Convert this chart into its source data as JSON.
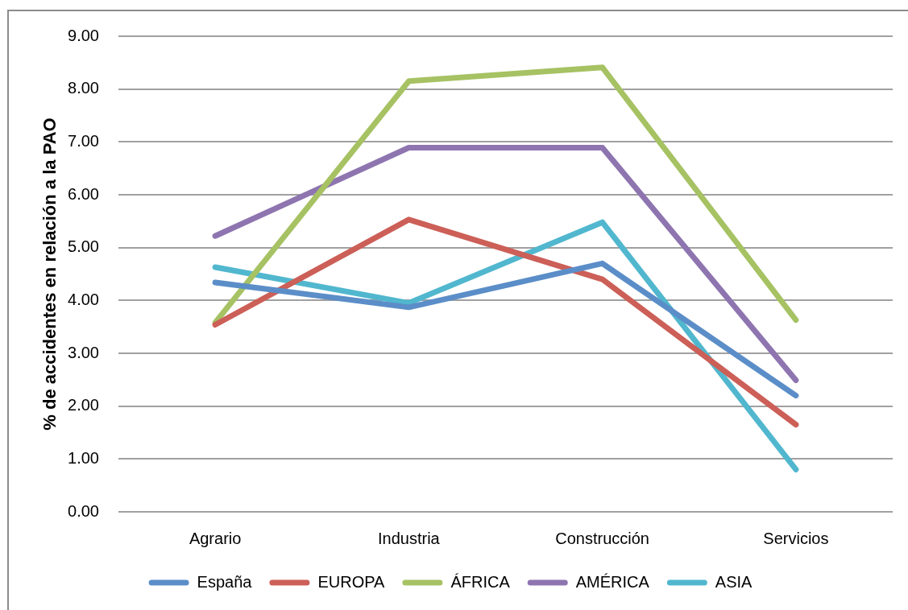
{
  "chart_data": {
    "type": "line",
    "ylabel": "% de accidentes en relación a la PAO",
    "categories": [
      "Agrario",
      "Industria",
      "Construcción",
      "Servicios"
    ],
    "series": [
      {
        "name": "España",
        "color": "#5b8ec8",
        "values": [
          4.34,
          3.87,
          4.7,
          2.2
        ]
      },
      {
        "name": "EUROPA",
        "color": "#cc5f57",
        "values": [
          3.54,
          5.53,
          4.4,
          1.65
        ]
      },
      {
        "name": "ÁFRICA",
        "color": "#a6c263",
        "values": [
          3.58,
          8.15,
          8.41,
          3.63
        ]
      },
      {
        "name": "AMÉRICA",
        "color": "#8e75b0",
        "values": [
          5.22,
          6.89,
          6.89,
          2.49
        ]
      },
      {
        "name": "ASIA",
        "color": "#51b7ce",
        "values": [
          4.63,
          3.95,
          5.48,
          0.8
        ]
      }
    ],
    "ylim": [
      0,
      9
    ],
    "yticks": [
      {
        "value": 0,
        "label": "0.00"
      },
      {
        "value": 1,
        "label": "1.00"
      },
      {
        "value": 2,
        "label": "2.00"
      },
      {
        "value": 3,
        "label": "3.00"
      },
      {
        "value": 4,
        "label": "4.00"
      },
      {
        "value": 5,
        "label": "5.00"
      },
      {
        "value": 6,
        "label": "6.00"
      },
      {
        "value": 7,
        "label": "7.00"
      },
      {
        "value": 8,
        "label": "8.00"
      },
      {
        "value": 9,
        "label": "9.00"
      }
    ],
    "grid": "y",
    "legend": "bottom"
  }
}
